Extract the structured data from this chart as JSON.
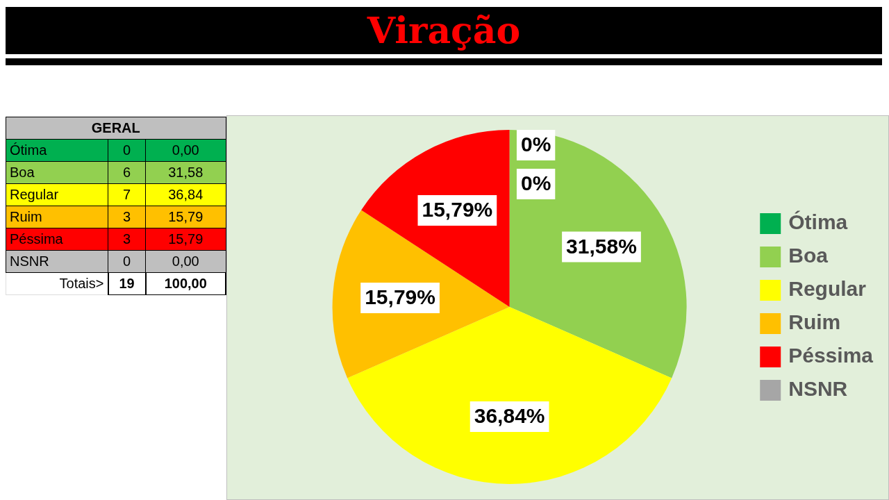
{
  "chart_data": [
    {
      "type": "pie",
      "title": "Viração",
      "categories": [
        "Ótima",
        "Boa",
        "Regular",
        "Ruim",
        "Péssima",
        "NSNR"
      ],
      "values": [
        0,
        31.58,
        36.84,
        15.79,
        15.79,
        0
      ],
      "colors": [
        "#00b050",
        "#92d050",
        "#ffff00",
        "#ffc000",
        "#ff0000",
        "#a6a6a6"
      ],
      "value_labels": [
        "0%",
        "31,58%",
        "36,84%",
        "15,79%",
        "15,79%",
        "0%"
      ],
      "legend": "right"
    },
    {
      "type": "other",
      "title": "GERAL",
      "categories": [
        "Ótima",
        "Boa",
        "Regular",
        "Ruim",
        "Péssima",
        "NSNR"
      ],
      "colors": [
        "#00b050",
        "#92d050",
        "#ffff00",
        "#ffc000",
        "#ff0000",
        "#bfbfbf"
      ],
      "annotations": [
        "0",
        "0,00",
        "6",
        "31,58",
        "7",
        "36,84",
        "3",
        "15,79",
        "3",
        "15,79",
        "0",
        "0,00",
        "Totais>",
        "19",
        "100,00"
      ]
    }
  ]
}
